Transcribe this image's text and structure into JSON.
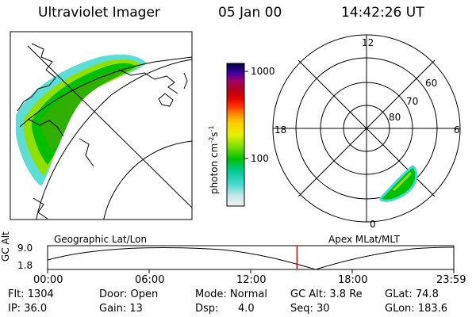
{
  "header": {
    "title": "Ultraviolet Imager",
    "date": "05 Jan 00",
    "time": "14:42:26 UT"
  },
  "colorbar": {
    "unit_text": "photon cm",
    "unit_sup1": "-2",
    "unit_s": "s",
    "unit_sup2": "-1",
    "ticks": [
      "1000",
      "100"
    ]
  },
  "polar_plot": {
    "mlt_labels": {
      "top": "12",
      "left": "18",
      "right": "6",
      "bottom": "0"
    },
    "lat_labels": [
      "60",
      "70",
      "80"
    ]
  },
  "map_labels": {
    "left": "Geographic Lat/Lon",
    "right": "Apex  MLat/MLT"
  },
  "timeline": {
    "ylabel": "GC Alt",
    "yticks": [
      "9.0",
      "1.8"
    ],
    "xticks": [
      "00:00",
      "06:00",
      "12:00",
      "18:00",
      "23:59"
    ],
    "current_fraction": 0.614
  },
  "status": {
    "flt": "Flt: 1304",
    "ip": "IP: 36.0",
    "door": "Door: Open",
    "gain": "Gain: 13",
    "mode": "Mode: Normal",
    "dsp_label": "Dsp:",
    "dsp_value": "4.0",
    "gcalt": "GC Alt: 3.8 Re",
    "seq": "Seq: 30",
    "glat": "GLat:  74.8",
    "glon": "GLon: 183.6"
  },
  "colors": {
    "aurora_high": "#00c000",
    "aurora_mid": "#90e000",
    "aurora_low": "#40d8d0",
    "cursor": "#e00000"
  }
}
